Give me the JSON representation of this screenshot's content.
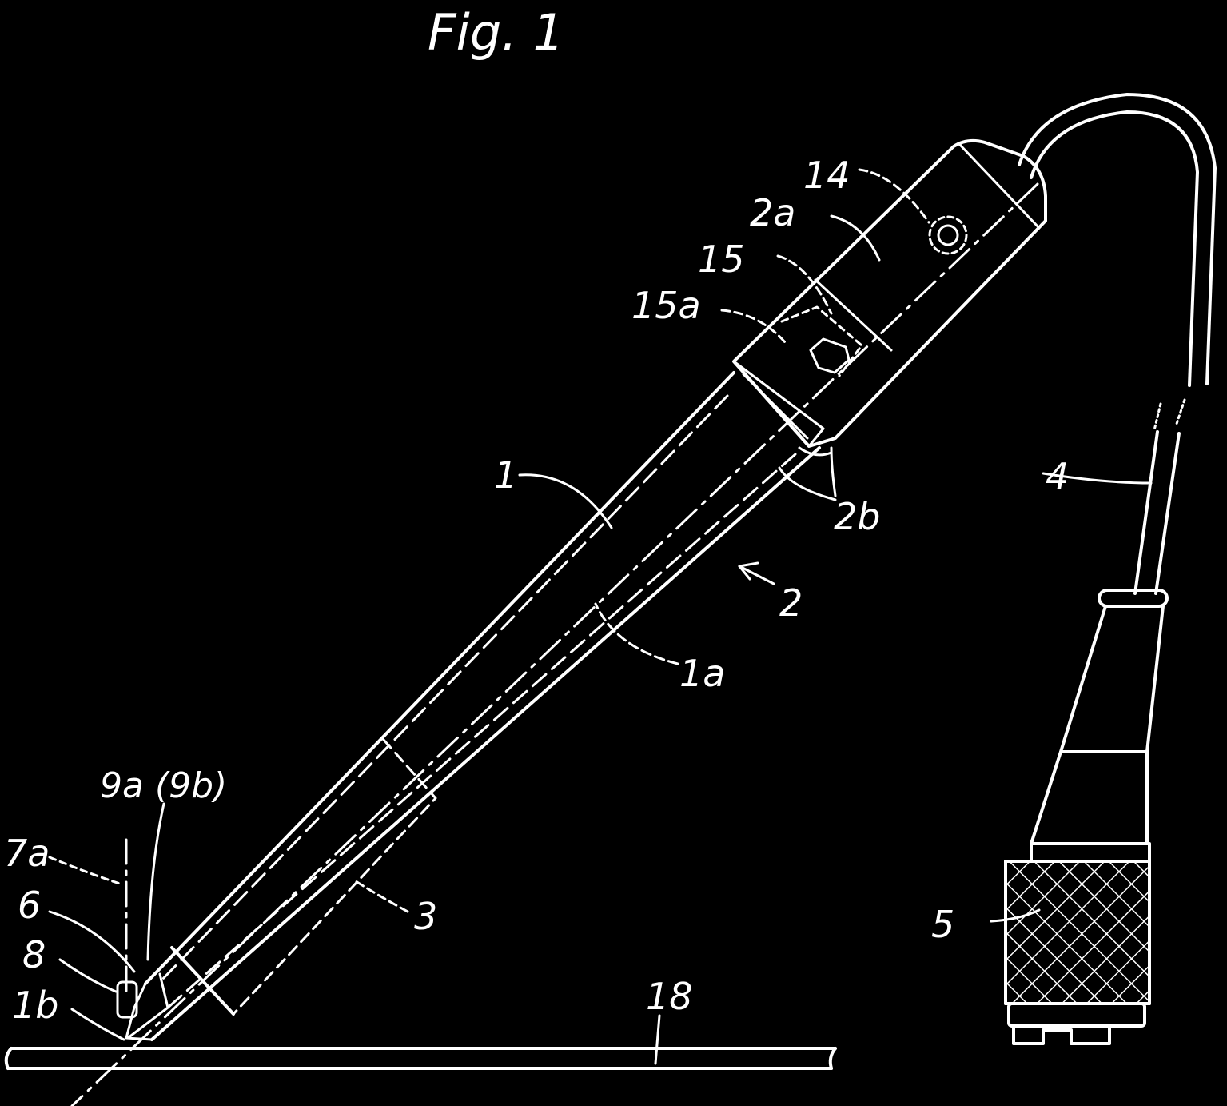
{
  "figure": {
    "title": "Fig. 1",
    "colors": {
      "background": "#000000",
      "line": "#ffffff"
    }
  },
  "labels": {
    "l14": "14",
    "l2a": "2a",
    "l15": "15",
    "l15a": "15a",
    "l1": "1",
    "l2b": "2b",
    "l4": "4",
    "l2": "2",
    "l1a": "1a",
    "l9a": "9a (9b)",
    "l7a": "7a",
    "l6": "6",
    "l8": "8",
    "l1b": "1b",
    "l3": "3",
    "l18": "18",
    "l5": "5"
  }
}
